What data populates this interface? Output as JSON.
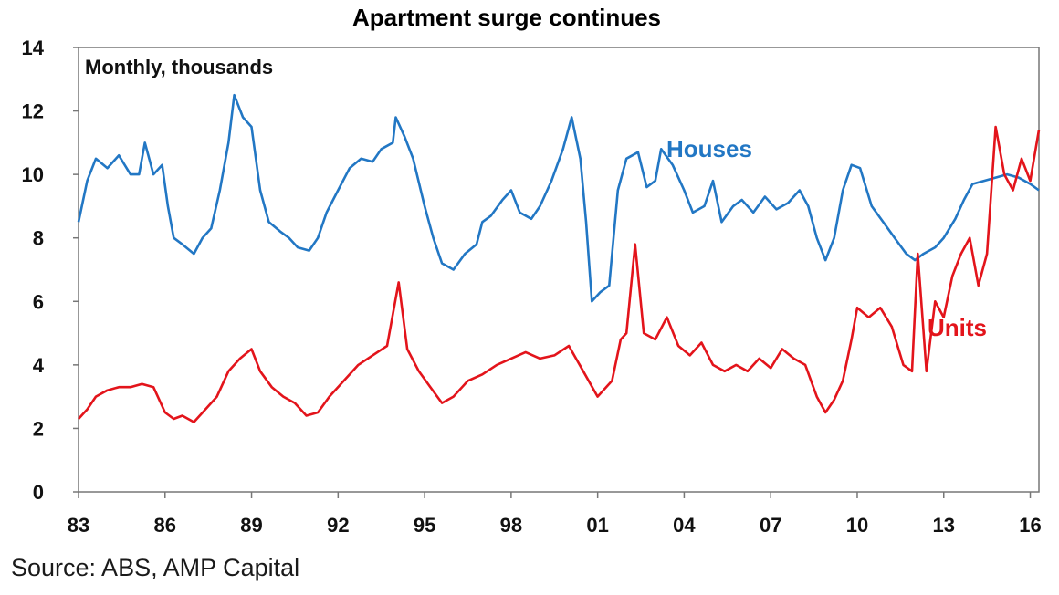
{
  "chart_data": {
    "type": "line",
    "title": "Apartment surge continues",
    "unit_note": "Monthly, thousands",
    "x_tick_labels": [
      "83",
      "86",
      "89",
      "92",
      "95",
      "98",
      "01",
      "04",
      "07",
      "10",
      "13",
      "16"
    ],
    "xlim": [
      1983,
      2016.3
    ],
    "ylim": [
      0,
      14
    ],
    "y_ticks": [
      0,
      2,
      4,
      6,
      8,
      10,
      12,
      14
    ],
    "grid": false,
    "series": [
      {
        "name": "Houses",
        "color": "#2277c4",
        "points": [
          [
            1983.0,
            8.5
          ],
          [
            1983.3,
            9.8
          ],
          [
            1983.6,
            10.5
          ],
          [
            1984.0,
            10.2
          ],
          [
            1984.4,
            10.6
          ],
          [
            1984.8,
            10.0
          ],
          [
            1985.1,
            10.0
          ],
          [
            1985.3,
            11.0
          ],
          [
            1985.6,
            10.0
          ],
          [
            1985.9,
            10.3
          ],
          [
            1986.1,
            9.0
          ],
          [
            1986.3,
            8.0
          ],
          [
            1986.6,
            7.8
          ],
          [
            1987.0,
            7.5
          ],
          [
            1987.3,
            8.0
          ],
          [
            1987.6,
            8.3
          ],
          [
            1987.9,
            9.5
          ],
          [
            1988.2,
            11.0
          ],
          [
            1988.4,
            12.5
          ],
          [
            1988.7,
            11.8
          ],
          [
            1989.0,
            11.5
          ],
          [
            1989.3,
            9.5
          ],
          [
            1989.6,
            8.5
          ],
          [
            1990.0,
            8.2
          ],
          [
            1990.3,
            8.0
          ],
          [
            1990.6,
            7.7
          ],
          [
            1991.0,
            7.6
          ],
          [
            1991.3,
            8.0
          ],
          [
            1991.6,
            8.8
          ],
          [
            1992.0,
            9.5
          ],
          [
            1992.4,
            10.2
          ],
          [
            1992.8,
            10.5
          ],
          [
            1993.2,
            10.4
          ],
          [
            1993.5,
            10.8
          ],
          [
            1993.9,
            11.0
          ],
          [
            1994.0,
            11.8
          ],
          [
            1994.3,
            11.2
          ],
          [
            1994.6,
            10.5
          ],
          [
            1995.0,
            9.0
          ],
          [
            1995.3,
            8.0
          ],
          [
            1995.6,
            7.2
          ],
          [
            1996.0,
            7.0
          ],
          [
            1996.4,
            7.5
          ],
          [
            1996.8,
            7.8
          ],
          [
            1997.0,
            8.5
          ],
          [
            1997.3,
            8.7
          ],
          [
            1997.7,
            9.2
          ],
          [
            1998.0,
            9.5
          ],
          [
            1998.3,
            8.8
          ],
          [
            1998.7,
            8.6
          ],
          [
            1999.0,
            9.0
          ],
          [
            1999.4,
            9.8
          ],
          [
            1999.8,
            10.8
          ],
          [
            2000.1,
            11.8
          ],
          [
            2000.4,
            10.5
          ],
          [
            2000.6,
            8.5
          ],
          [
            2000.8,
            6.0
          ],
          [
            2001.1,
            6.3
          ],
          [
            2001.4,
            6.5
          ],
          [
            2001.7,
            9.5
          ],
          [
            2002.0,
            10.5
          ],
          [
            2002.4,
            10.7
          ],
          [
            2002.7,
            9.6
          ],
          [
            2003.0,
            9.8
          ],
          [
            2003.2,
            10.8
          ],
          [
            2003.6,
            10.3
          ],
          [
            2004.0,
            9.5
          ],
          [
            2004.3,
            8.8
          ],
          [
            2004.7,
            9.0
          ],
          [
            2005.0,
            9.8
          ],
          [
            2005.3,
            8.5
          ],
          [
            2005.7,
            9.0
          ],
          [
            2006.0,
            9.2
          ],
          [
            2006.4,
            8.8
          ],
          [
            2006.8,
            9.3
          ],
          [
            2007.2,
            8.9
          ],
          [
            2007.6,
            9.1
          ],
          [
            2008.0,
            9.5
          ],
          [
            2008.3,
            9.0
          ],
          [
            2008.6,
            8.0
          ],
          [
            2008.9,
            7.3
          ],
          [
            2009.2,
            8.0
          ],
          [
            2009.5,
            9.5
          ],
          [
            2009.8,
            10.3
          ],
          [
            2010.1,
            10.2
          ],
          [
            2010.5,
            9.0
          ],
          [
            2010.9,
            8.5
          ],
          [
            2011.3,
            8.0
          ],
          [
            2011.7,
            7.5
          ],
          [
            2012.0,
            7.3
          ],
          [
            2012.3,
            7.5
          ],
          [
            2012.7,
            7.7
          ],
          [
            2013.0,
            8.0
          ],
          [
            2013.4,
            8.6
          ],
          [
            2013.7,
            9.2
          ],
          [
            2014.0,
            9.7
          ],
          [
            2014.4,
            9.8
          ],
          [
            2014.8,
            9.9
          ],
          [
            2015.2,
            10.0
          ],
          [
            2015.6,
            9.9
          ],
          [
            2016.0,
            9.7
          ],
          [
            2016.3,
            9.5
          ]
        ]
      },
      {
        "name": "Units",
        "color": "#e3141b",
        "points": [
          [
            1983.0,
            2.3
          ],
          [
            1983.3,
            2.6
          ],
          [
            1983.6,
            3.0
          ],
          [
            1984.0,
            3.2
          ],
          [
            1984.4,
            3.3
          ],
          [
            1984.8,
            3.3
          ],
          [
            1985.2,
            3.4
          ],
          [
            1985.6,
            3.3
          ],
          [
            1986.0,
            2.5
          ],
          [
            1986.3,
            2.3
          ],
          [
            1986.6,
            2.4
          ],
          [
            1987.0,
            2.2
          ],
          [
            1987.4,
            2.6
          ],
          [
            1987.8,
            3.0
          ],
          [
            1988.2,
            3.8
          ],
          [
            1988.6,
            4.2
          ],
          [
            1989.0,
            4.5
          ],
          [
            1989.3,
            3.8
          ],
          [
            1989.7,
            3.3
          ],
          [
            1990.1,
            3.0
          ],
          [
            1990.5,
            2.8
          ],
          [
            1990.9,
            2.4
          ],
          [
            1991.3,
            2.5
          ],
          [
            1991.7,
            3.0
          ],
          [
            1992.2,
            3.5
          ],
          [
            1992.7,
            4.0
          ],
          [
            1993.2,
            4.3
          ],
          [
            1993.7,
            4.6
          ],
          [
            1994.1,
            6.6
          ],
          [
            1994.4,
            4.5
          ],
          [
            1994.8,
            3.8
          ],
          [
            1995.2,
            3.3
          ],
          [
            1995.6,
            2.8
          ],
          [
            1996.0,
            3.0
          ],
          [
            1996.5,
            3.5
          ],
          [
            1997.0,
            3.7
          ],
          [
            1997.5,
            4.0
          ],
          [
            1998.0,
            4.2
          ],
          [
            1998.5,
            4.4
          ],
          [
            1999.0,
            4.2
          ],
          [
            1999.5,
            4.3
          ],
          [
            2000.0,
            4.6
          ],
          [
            2000.5,
            3.8
          ],
          [
            2001.0,
            3.0
          ],
          [
            2001.5,
            3.5
          ],
          [
            2001.8,
            4.8
          ],
          [
            2002.0,
            5.0
          ],
          [
            2002.3,
            7.8
          ],
          [
            2002.6,
            5.0
          ],
          [
            2003.0,
            4.8
          ],
          [
            2003.4,
            5.5
          ],
          [
            2003.8,
            4.6
          ],
          [
            2004.2,
            4.3
          ],
          [
            2004.6,
            4.7
          ],
          [
            2005.0,
            4.0
          ],
          [
            2005.4,
            3.8
          ],
          [
            2005.8,
            4.0
          ],
          [
            2006.2,
            3.8
          ],
          [
            2006.6,
            4.2
          ],
          [
            2007.0,
            3.9
          ],
          [
            2007.4,
            4.5
          ],
          [
            2007.8,
            4.2
          ],
          [
            2008.2,
            4.0
          ],
          [
            2008.6,
            3.0
          ],
          [
            2008.9,
            2.5
          ],
          [
            2009.2,
            2.9
          ],
          [
            2009.5,
            3.5
          ],
          [
            2009.8,
            4.8
          ],
          [
            2010.0,
            5.8
          ],
          [
            2010.4,
            5.5
          ],
          [
            2010.8,
            5.8
          ],
          [
            2011.2,
            5.2
          ],
          [
            2011.6,
            4.0
          ],
          [
            2011.9,
            3.8
          ],
          [
            2012.1,
            7.5
          ],
          [
            2012.4,
            3.8
          ],
          [
            2012.7,
            6.0
          ],
          [
            2013.0,
            5.5
          ],
          [
            2013.3,
            6.8
          ],
          [
            2013.6,
            7.5
          ],
          [
            2013.9,
            8.0
          ],
          [
            2014.2,
            6.5
          ],
          [
            2014.5,
            7.5
          ],
          [
            2014.8,
            11.5
          ],
          [
            2015.1,
            10.0
          ],
          [
            2015.4,
            9.5
          ],
          [
            2015.7,
            10.5
          ],
          [
            2016.0,
            9.8
          ],
          [
            2016.3,
            11.4
          ]
        ]
      }
    ],
    "source": "Source: ABS, AMP Capital"
  }
}
